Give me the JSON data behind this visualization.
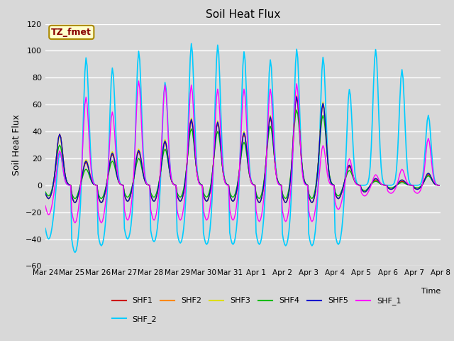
{
  "title": "Soil Heat Flux",
  "ylabel": "Soil Heat Flux",
  "xlabel": "Time",
  "ylim": [
    -60,
    120
  ],
  "series_colors": {
    "SHF1": "#cc0000",
    "SHF2": "#ff8800",
    "SHF3": "#dddd00",
    "SHF4": "#00bb00",
    "SHF5": "#0000cc",
    "SHF_1": "#ff00ff",
    "SHF_2": "#00ccff"
  },
  "annotation_text": "TZ_fmet",
  "annotation_bg": "#ffffcc",
  "annotation_border": "#aa8800",
  "fig_bg": "#d8d8d8",
  "plot_bg": "#d8d8d8",
  "xtick_labels": [
    "Mar 24",
    "Mar 25",
    "Mar 26",
    "Mar 27",
    "Mar 28",
    "Mar 29",
    "Mar 30",
    "Mar 31",
    "Apr 1",
    "Apr 2",
    "Apr 3",
    "Apr 4",
    "Apr 5",
    "Apr 6",
    "Apr 7",
    "Apr 8"
  ]
}
